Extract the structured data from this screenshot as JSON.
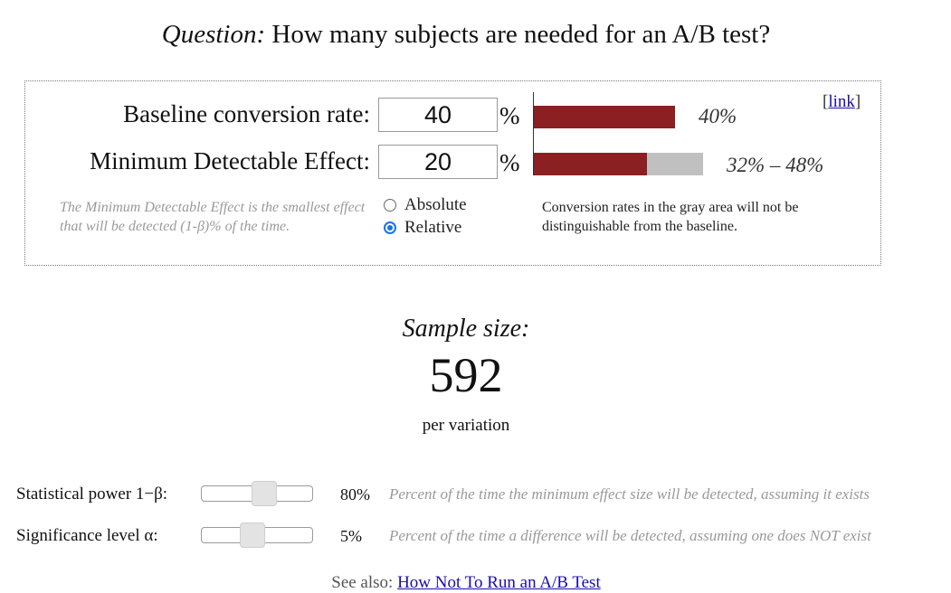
{
  "title": {
    "prefix": "Question:",
    "text": "How many subjects are needed for an A/B test?"
  },
  "panel": {
    "baseline": {
      "label": "Baseline conversion rate:",
      "value": "40",
      "unit": "%",
      "bar_label": "40%",
      "bar_fraction": 0.4
    },
    "mde": {
      "label": "Minimum Detectable Effect:",
      "value": "20",
      "unit": "%",
      "bar_label": "32% – 48%",
      "range_low": 0.32,
      "range_high": 0.48
    },
    "link": {
      "open": "[",
      "text": "link",
      "close": "]"
    },
    "mde_note": "The Minimum Detectable Effect is the smallest effect that will be detected (1-β)% of the time.",
    "mode_options": [
      {
        "label": "Absolute",
        "checked": false
      },
      {
        "label": "Relative",
        "checked": true
      }
    ],
    "gray_note": "Conversion rates in the gray area will not be distinguishable from the baseline."
  },
  "result": {
    "title": "Sample size:",
    "value": "592",
    "unit": "per variation"
  },
  "sliders": [
    {
      "label": "Statistical power 1−β:",
      "value": "80%",
      "position": 0.58,
      "description": "Percent of the time the minimum effect size will be detected, assuming it exists"
    },
    {
      "label": "Significance level α:",
      "value": "5%",
      "position": 0.45,
      "description": "Percent of the time a difference will be detected, assuming one does NOT exist"
    }
  ],
  "footer": {
    "prefix": "See also:",
    "link_text": "How Not To Run an A/B Test"
  },
  "colors": {
    "bar_red": "#8b1f22",
    "bar_gray": "#c0c0c0",
    "link_blue": "#1a0dab",
    "radio_blue": "#1a73e8"
  }
}
